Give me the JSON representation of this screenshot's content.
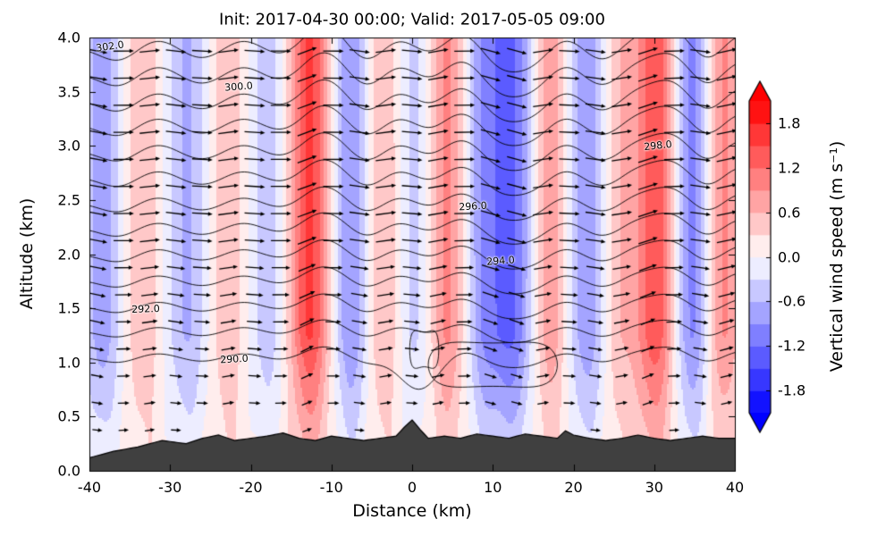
{
  "title": "Init: 2017-04-30 00:00; Valid: 2017-05-05 09:00",
  "axes": {
    "xlabel": "Distance (km)",
    "ylabel": "Altitude (km)",
    "xlim": [
      -40,
      40
    ],
    "ylim": [
      0,
      4
    ],
    "x_tick_values": [
      -40,
      -30,
      -20,
      -10,
      0,
      10,
      20,
      30,
      40
    ],
    "x_tick_labels": [
      "-40",
      "-30",
      "-20",
      "-10",
      "0",
      "10",
      "20",
      "30",
      "40"
    ],
    "y_tick_values": [
      0,
      0.5,
      1,
      1.5,
      2,
      2.5,
      3,
      3.5,
      4
    ],
    "y_tick_labels": [
      "0.0",
      "0.5",
      "1.0",
      "1.5",
      "2.0",
      "2.5",
      "3.0",
      "3.5",
      "4.0"
    ],
    "grid": false
  },
  "colorbar": {
    "label": "Vertical wind speed (m s⁻¹)",
    "tick_values": [
      1.8,
      1.2,
      0.6,
      0.0,
      -0.6,
      -1.2,
      -1.8
    ],
    "tick_labels": [
      "1.8",
      "1.2",
      "0.6",
      "0.0",
      "-0.6",
      "-1.2",
      "-1.8"
    ],
    "vmin": -2.1,
    "vmax": 2.1,
    "step": 0.3,
    "cmap": "bwr",
    "extend": "both"
  },
  "chart_data": {
    "type": "heatmap",
    "description": "Vertical cross-section: filled contours of vertical wind speed (m/s, blue-white-red), black contour lines of potential temperature (K, 1 K interval), wind vector arrows blowing left-to-right, dark gray terrain along the bottom.",
    "x_range": [
      -40,
      40
    ],
    "z_range": [
      0,
      4
    ],
    "contourf_variable": "vertical wind speed (m s-1)",
    "contour_variable": "potential temperature (K)",
    "contour_interval_K": 1,
    "vertical_wind_bands": [
      {
        "x": -38.5,
        "a": -0.8,
        "w": 2.2
      },
      {
        "x": -33.5,
        "a": 0.55,
        "w": 2.2
      },
      {
        "x": -28.0,
        "a": -0.65,
        "w": 2.4
      },
      {
        "x": -23.0,
        "a": 0.55,
        "w": 2.2
      },
      {
        "x": -18.0,
        "a": -0.5,
        "w": 2.2
      },
      {
        "x": -12.8,
        "a": 1.55,
        "w": 2.6
      },
      {
        "x": -7.8,
        "a": -0.95,
        "w": 2.2
      },
      {
        "x": -3.8,
        "a": 0.6,
        "w": 2.0
      },
      {
        "x": 0.3,
        "a": -0.4,
        "w": 1.8
      },
      {
        "x": 4.3,
        "a": 0.95,
        "w": 2.2
      },
      {
        "x": 8.5,
        "a": -0.7,
        "w": 2.0
      },
      {
        "x": 12.0,
        "a": -1.3,
        "w": 2.8
      },
      {
        "x": 17.0,
        "a": 0.85,
        "w": 2.2
      },
      {
        "x": 21.5,
        "a": -0.85,
        "w": 2.4
      },
      {
        "x": 25.5,
        "a": 0.55,
        "w": 2.0
      },
      {
        "x": 30.0,
        "a": 1.45,
        "w": 2.6
      },
      {
        "x": 34.5,
        "a": -1.05,
        "w": 2.2
      },
      {
        "x": 38.5,
        "a": 0.95,
        "w": 2.2
      }
    ],
    "surface_layer": {
      "amp": 0.18,
      "decay_km": 0.5,
      "wavelength_km": 3.3
    },
    "theta_contours": [
      {
        "level": 290,
        "z": 1.05
      },
      {
        "level": 291,
        "z": 1.29
      },
      {
        "level": 292,
        "z": 1.52
      },
      {
        "level": 293,
        "z": 1.76
      },
      {
        "level": 294,
        "z": 2.0
      },
      {
        "level": 295,
        "z": 2.24
      },
      {
        "level": 296,
        "z": 2.47
      },
      {
        "level": 297,
        "z": 2.71
      },
      {
        "level": 298,
        "z": 2.95
      },
      {
        "level": 299,
        "z": 3.19
      },
      {
        "level": 300,
        "z": 3.42
      },
      {
        "level": 301,
        "z": 3.66
      },
      {
        "level": 302,
        "z": 3.9
      }
    ],
    "boundary_layer_dip": {
      "center_x": 0.5,
      "width": 3.5,
      "depth": 0.3,
      "applies_below_level": 291
    },
    "closed_contours": [
      {
        "cx": 10.0,
        "cz": 0.98,
        "rx": 8.0,
        "rz": 0.24
      },
      {
        "cx": 1.5,
        "cz": 1.12,
        "rx": 1.8,
        "rz": 0.2
      }
    ],
    "contour_labels": [
      {
        "text": "302.0",
        "x": -37.5,
        "z": 3.92,
        "rot": -8
      },
      {
        "text": "300.0",
        "x": -21.5,
        "z": 3.55,
        "rot": -4
      },
      {
        "text": "298.0",
        "x": 30.5,
        "z": 3.0,
        "rot": -6
      },
      {
        "text": "296.0",
        "x": 7.5,
        "z": 2.44,
        "rot": -3
      },
      {
        "text": "294.0",
        "x": 11.0,
        "z": 1.94,
        "rot": -4
      },
      {
        "text": "292.0",
        "x": -33.0,
        "z": 1.49,
        "rot": -2
      },
      {
        "text": "290.0",
        "x": -22.0,
        "z": 1.03,
        "rot": -3
      }
    ],
    "terrain": [
      [
        -40,
        0.12
      ],
      [
        -37,
        0.18
      ],
      [
        -34,
        0.22
      ],
      [
        -31,
        0.28
      ],
      [
        -28,
        0.25
      ],
      [
        -26,
        0.3
      ],
      [
        -24,
        0.33
      ],
      [
        -22,
        0.28
      ],
      [
        -20,
        0.3
      ],
      [
        -18,
        0.32
      ],
      [
        -16,
        0.35
      ],
      [
        -14,
        0.3
      ],
      [
        -12,
        0.28
      ],
      [
        -10,
        0.32
      ],
      [
        -8,
        0.3
      ],
      [
        -6,
        0.28
      ],
      [
        -4,
        0.3
      ],
      [
        -2,
        0.32
      ],
      [
        -1,
        0.4
      ],
      [
        0,
        0.47
      ],
      [
        1,
        0.38
      ],
      [
        2,
        0.3
      ],
      [
        4,
        0.32
      ],
      [
        6,
        0.3
      ],
      [
        8,
        0.34
      ],
      [
        10,
        0.32
      ],
      [
        12,
        0.3
      ],
      [
        14,
        0.34
      ],
      [
        16,
        0.32
      ],
      [
        18,
        0.3
      ],
      [
        19,
        0.37
      ],
      [
        20,
        0.33
      ],
      [
        22,
        0.3
      ],
      [
        24,
        0.28
      ],
      [
        26,
        0.3
      ],
      [
        28,
        0.33
      ],
      [
        30,
        0.3
      ],
      [
        32,
        0.28
      ],
      [
        34,
        0.3
      ],
      [
        36,
        0.32
      ],
      [
        38,
        0.3
      ],
      [
        40,
        0.3
      ]
    ],
    "terrain_color": "#404040",
    "quiver": {
      "direction": "left-to-right (westerly)",
      "x_start": -39,
      "x_end": 39,
      "x_step": 3.25,
      "z_start": 0.125,
      "z_end": 3.875,
      "z_step": 0.25,
      "speed_increases_with_height": true
    }
  }
}
